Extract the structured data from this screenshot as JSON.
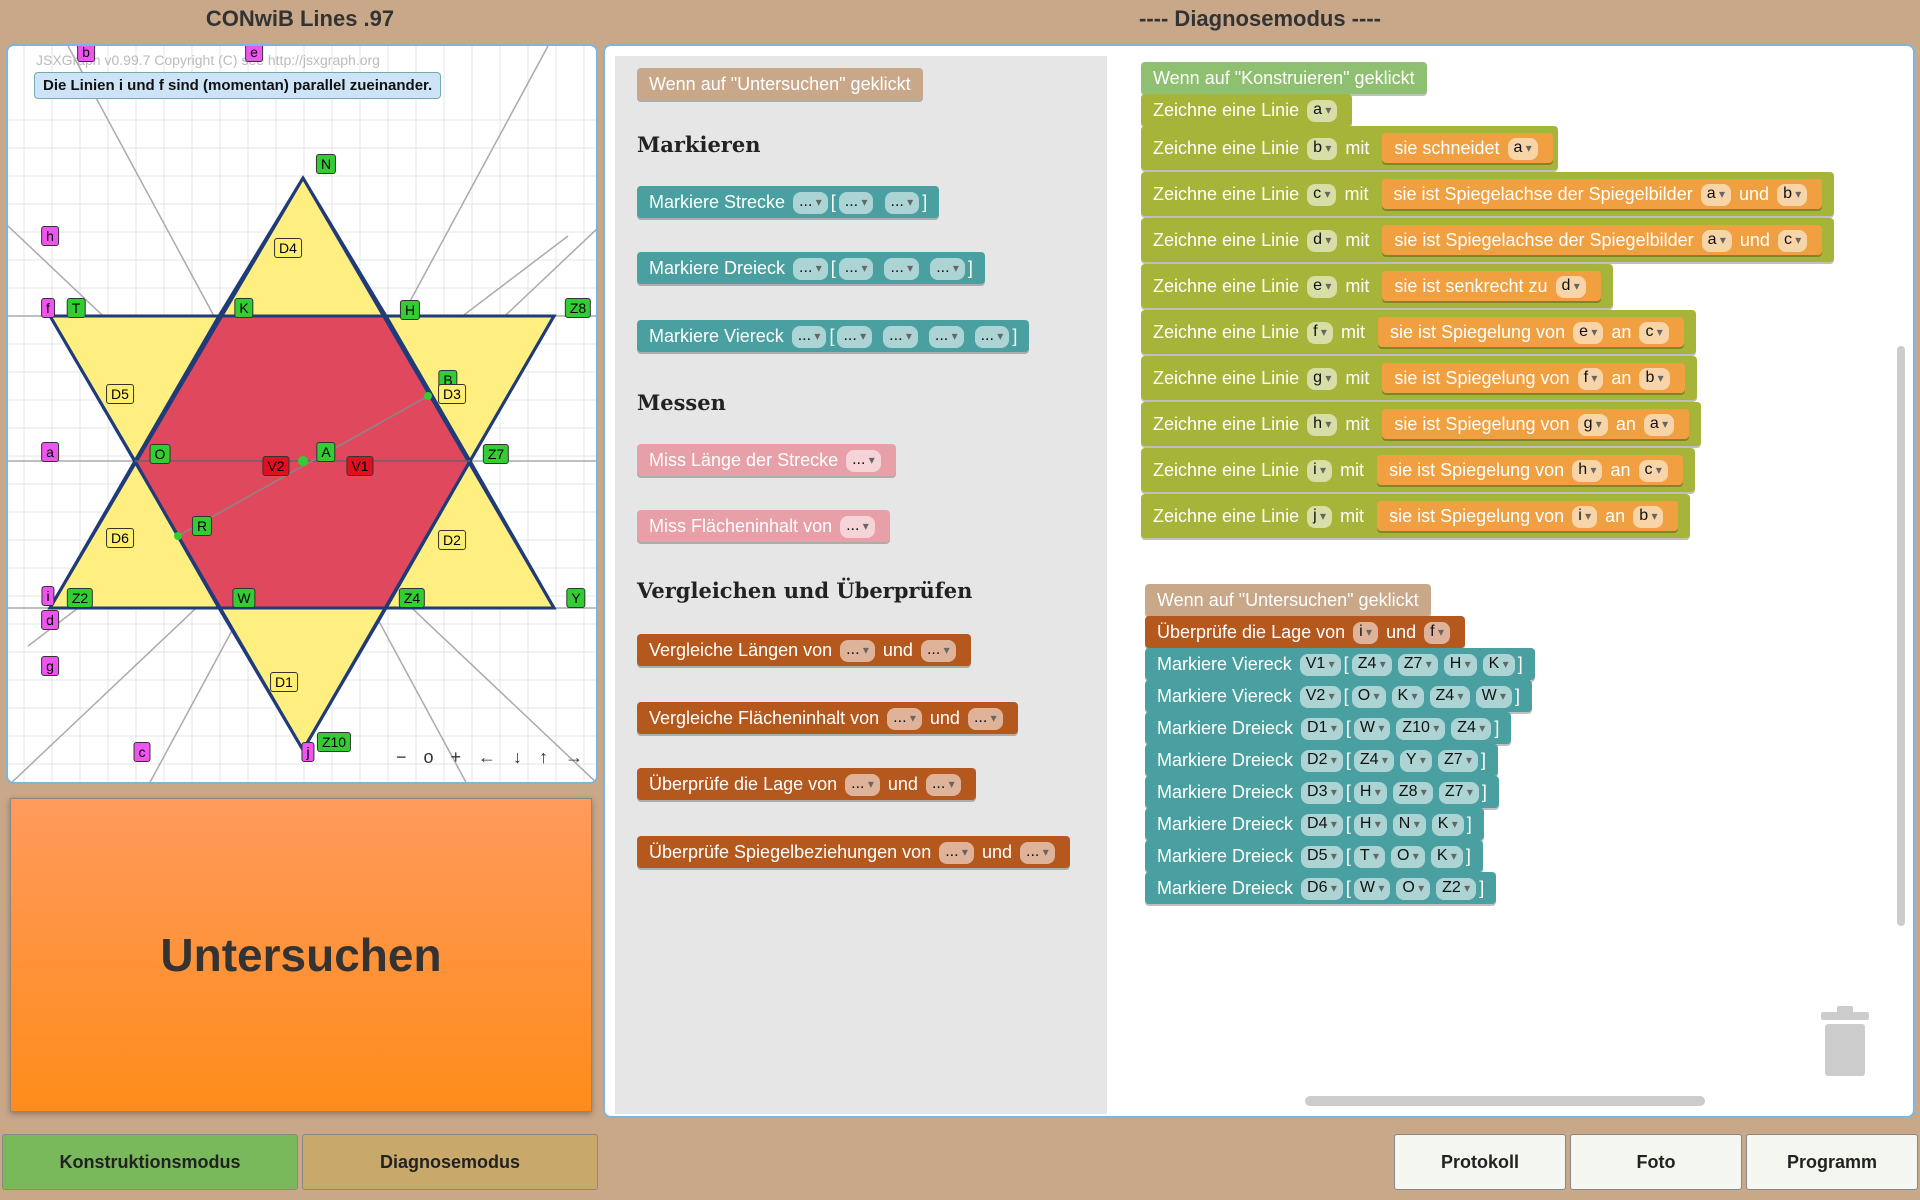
{
  "header": {
    "app_title": "CONwiB Lines .97",
    "mode_title": "---- Diagnosemodus ----"
  },
  "geometry": {
    "copyright": "JSXGraph v0.99.7 Copyright (C) see http://jsxgraph.org",
    "message": "Die Linien i und f sind (momentan) parallel zueinander.",
    "nav": "− o + ← ↓ ↑ →",
    "labels": {
      "N": "N",
      "K": "K",
      "H": "H",
      "T": "T",
      "Z8": "Z8",
      "O": "O",
      "A": "A",
      "Z7": "Z7",
      "R": "R",
      "W": "W",
      "Z4": "Z4",
      "Z2": "Z2",
      "Y": "Y",
      "Z10": "Z10",
      "B": "B",
      "D4": "D4",
      "D5": "D5",
      "D3": "D3",
      "D6": "D6",
      "D2": "D2",
      "D1": "D1",
      "V1": "V1",
      "V2": "V2",
      "b": "b",
      "e": "e",
      "h": "h",
      "f": "f",
      "a": "a",
      "i": "i",
      "d": "d",
      "g": "g",
      "c": "c",
      "j": "j"
    }
  },
  "untersuchen_label": "Untersuchen",
  "toolbox": {
    "hat": "Wenn auf \"Untersuchen\" geklickt",
    "cat_markieren": "Markieren",
    "markiere_strecke": "Markiere Strecke",
    "markiere_dreieck": "Markiere Dreieck",
    "markiere_viereck": "Markiere Viereck",
    "cat_messen": "Messen",
    "miss_laenge": "Miss Länge der Strecke",
    "miss_flaeche": "Miss Flächeninhalt von",
    "cat_vergleichen": "Vergleichen und Überprüfen",
    "vgl_laengen": "Vergleiche Längen von",
    "vgl_flaechen": "Vergleiche Flächeninhalt von",
    "ueb_lage": "Überprüfe die Lage von",
    "ueb_spiegel": "Überprüfe Spiegelbeziehungen von",
    "und": "und",
    "placeholder": "...",
    "lb": "[",
    "rb": "]"
  },
  "konstruieren": {
    "hat": "Wenn auf \"Konstruieren\" geklickt",
    "zeichne": "Zeichne eine Linie",
    "mit": "mit",
    "an": "an",
    "und": "und",
    "schneidet": "sie schneidet",
    "spiegelachse": "sie ist Spiegelachse der Spiegelbilder",
    "senkrecht": "sie ist senkrecht zu",
    "spiegelung": "sie ist Spiegelung von",
    "vars": {
      "a": "a",
      "b": "b",
      "c": "c",
      "d": "d",
      "e": "e",
      "f": "f",
      "g": "g",
      "h": "h",
      "i": "i",
      "j": "j"
    }
  },
  "untersuchen_prog": {
    "hat": "Wenn auf \"Untersuchen\" geklickt",
    "lage": "Überprüfe die Lage von",
    "und": "und",
    "viereck": "Markiere Viereck",
    "dreieck": "Markiere Dreieck",
    "lb": "[",
    "rb": "]",
    "v": {
      "i": "i",
      "f": "f",
      "V1": "V1",
      "V2": "V2",
      "Z4": "Z4",
      "Z7": "Z7",
      "H": "H",
      "K": "K",
      "O": "O",
      "W": "W",
      "D1": "D1",
      "D2": "D2",
      "D3": "D3",
      "D4": "D4",
      "D5": "D5",
      "D6": "D6",
      "Z10": "Z10",
      "Y": "Y",
      "Z8": "Z8",
      "N": "N",
      "T": "T",
      "Z2": "Z2"
    }
  },
  "buttons": {
    "konstruktion": "Konstruktionsmodus",
    "diagnose": "Diagnosemodus",
    "protokoll": "Protokoll",
    "foto": "Foto",
    "programm": "Programm"
  },
  "colors": {
    "yellow": "#ffef80",
    "red": "#e0485e",
    "green_point": "#33cc33"
  }
}
